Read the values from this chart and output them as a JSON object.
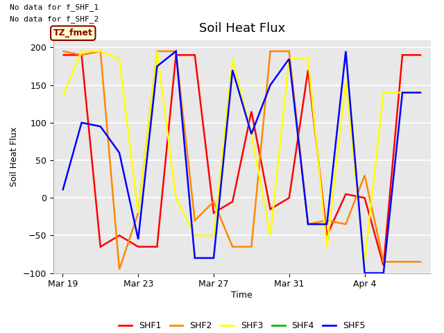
{
  "title": "Soil Heat Flux",
  "ylabel": "Soil Heat Flux",
  "xlabel": "Time",
  "ylim": [
    -100,
    210
  ],
  "yticks": [
    -100,
    -50,
    0,
    50,
    100,
    150,
    200
  ],
  "note_line1": "No data for f_SHF_1",
  "note_line2": "No data for f_SHF_2",
  "legend_label": "TZ_fmet",
  "plot_bg": "#e8e8e8",
  "fig_bg": "#ffffff",
  "grid_color": "#ffffff",
  "series_order": [
    "SHF1",
    "SHF2",
    "SHF3",
    "SHF4",
    "SHF5"
  ],
  "series": {
    "SHF1": {
      "color": "#ff0000",
      "x": [
        0,
        1,
        2,
        3,
        4,
        5,
        6,
        7,
        8,
        9,
        10,
        11,
        12,
        13,
        14,
        15,
        16,
        17,
        18,
        19
      ],
      "y": [
        190,
        190,
        -65,
        -50,
        -65,
        -65,
        190,
        190,
        -20,
        -5,
        115,
        -15,
        0,
        170,
        -50,
        5,
        0,
        -90,
        190,
        190
      ]
    },
    "SHF2": {
      "color": "#ff8800",
      "x": [
        0,
        1,
        2,
        3,
        4,
        5,
        6,
        7,
        8,
        9,
        10,
        11,
        12,
        13,
        14,
        15,
        16,
        17,
        18,
        19
      ],
      "y": [
        195,
        190,
        195,
        -95,
        -20,
        195,
        195,
        -30,
        -5,
        -65,
        -65,
        195,
        195,
        -35,
        -30,
        -35,
        30,
        -85,
        -85,
        -85
      ]
    },
    "SHF3": {
      "color": "#ffff00",
      "x": [
        0,
        1,
        2,
        3,
        4,
        5,
        6,
        7,
        8,
        9,
        10,
        11,
        12,
        13,
        14,
        15,
        16,
        17,
        18,
        19
      ],
      "y": [
        135,
        195,
        195,
        185,
        -20,
        195,
        0,
        -50,
        -50,
        185,
        85,
        -50,
        185,
        185,
        -65,
        155,
        -85,
        140,
        140,
        140
      ]
    },
    "SHF4": {
      "color": "#00bb00",
      "x": [],
      "y": []
    },
    "SHF5": {
      "color": "#0000ff",
      "x": [
        0,
        1,
        2,
        3,
        4,
        5,
        6,
        7,
        8,
        9,
        10,
        11,
        12,
        13,
        14,
        15,
        16,
        17,
        18,
        19
      ],
      "y": [
        10,
        100,
        95,
        60,
        -55,
        175,
        195,
        -80,
        -80,
        170,
        85,
        150,
        185,
        -35,
        -35,
        195,
        -100,
        -100,
        140,
        140
      ]
    }
  },
  "xtick_positions": [
    0,
    4,
    8,
    12,
    16
  ],
  "xtick_labels": [
    "Mar 19",
    "Mar 23",
    "Mar 27",
    "Mar 31",
    "Apr 4"
  ],
  "xlim": [
    -0.5,
    19.5
  ]
}
